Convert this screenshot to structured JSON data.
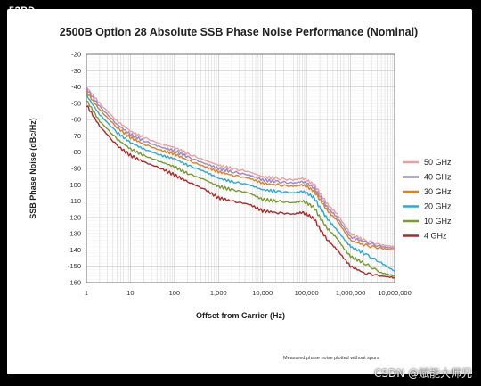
{
  "corner_tag": "52PD",
  "watermark": "CSDN @赋能大师兄",
  "chart_data": {
    "type": "line",
    "title": "2500B Option 28   Absolute SSB Phase Noise Performance (Nominal)",
    "xlabel": "Offset from Carrier (Hz)",
    "ylabel": "SSB Phase Noise (dBc/Hz)",
    "note": "Measured phase noise plotted without spurs",
    "x_scale": "log",
    "xlim": [
      1,
      10000000
    ],
    "ylim": [
      -160,
      -20
    ],
    "x_ticks": [
      {
        "value": 1,
        "label": "1"
      },
      {
        "value": 10,
        "label": "10"
      },
      {
        "value": 100,
        "label": "100"
      },
      {
        "value": 1000,
        "label": "1,000"
      },
      {
        "value": 10000,
        "label": "10,000"
      },
      {
        "value": 100000,
        "label": "100,000"
      },
      {
        "value": 1000000,
        "label": "1,000,000"
      },
      {
        "value": 10000000,
        "label": "10,000,000"
      }
    ],
    "y_ticks": [
      -20,
      -30,
      -40,
      -50,
      -60,
      -70,
      -80,
      -90,
      -100,
      -110,
      -120,
      -130,
      -140,
      -150,
      -160
    ],
    "grid": true,
    "legend_position": "right",
    "x": [
      1,
      2,
      5,
      10,
      20,
      50,
      100,
      200,
      500,
      1000,
      2000,
      5000,
      10000,
      20000,
      50000,
      80000,
      100000,
      150000,
      200000,
      300000,
      500000,
      700000,
      1000000,
      2000000,
      5000000,
      10000000
    ],
    "series": [
      {
        "name": "50 GHz",
        "color": "#e8a0a0",
        "values": [
          -40,
          -50,
          -61,
          -67,
          -71,
          -75,
          -77,
          -81,
          -85,
          -88,
          -90,
          -92,
          -95,
          -96,
          -97,
          -96,
          -97,
          -100,
          -105,
          -112,
          -118,
          -124,
          -130,
          -134,
          -137,
          -138
        ]
      },
      {
        "name": "40 GHz",
        "color": "#9a88c8",
        "values": [
          -41,
          -52,
          -63,
          -69,
          -73,
          -77,
          -79,
          -83,
          -87,
          -90,
          -92,
          -94,
          -97,
          -98,
          -99,
          -98,
          -99,
          -102,
          -107,
          -114,
          -120,
          -126,
          -132,
          -135,
          -138,
          -139
        ]
      },
      {
        "name": "30 GHz",
        "color": "#e0801e",
        "values": [
          -43,
          -54,
          -65,
          -71,
          -75,
          -79,
          -81,
          -85,
          -89,
          -92,
          -94,
          -96,
          -99,
          -100,
          -101,
          -100,
          -101,
          -104,
          -109,
          -116,
          -122,
          -128,
          -134,
          -137,
          -139,
          -140
        ]
      },
      {
        "name": "20 GHz",
        "color": "#2aa8d8",
        "values": [
          -45,
          -57,
          -68,
          -74,
          -78,
          -82,
          -84,
          -88,
          -92,
          -96,
          -98,
          -100,
          -103,
          -104,
          -105,
          -104,
          -105,
          -108,
          -114,
          -121,
          -128,
          -133,
          -138,
          -142,
          -148,
          -153
        ]
      },
      {
        "name": "10 GHz",
        "color": "#7a9a2e",
        "values": [
          -48,
          -61,
          -72,
          -78,
          -82,
          -86,
          -89,
          -93,
          -97,
          -101,
          -103,
          -105,
          -109,
          -110,
          -111,
          -110,
          -111,
          -114,
          -120,
          -127,
          -133,
          -139,
          -144,
          -148,
          -154,
          -156
        ]
      },
      {
        "name": "4 GHz",
        "color": "#b02828",
        "values": [
          -51,
          -64,
          -76,
          -82,
          -86,
          -90,
          -94,
          -98,
          -103,
          -108,
          -110,
          -112,
          -116,
          -117,
          -118,
          -117,
          -118,
          -121,
          -127,
          -134,
          -140,
          -145,
          -150,
          -154,
          -156,
          -157
        ]
      }
    ]
  }
}
